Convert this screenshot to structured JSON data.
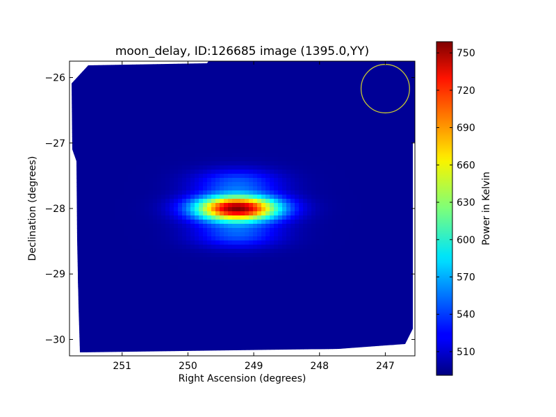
{
  "chart_data": {
    "type": "heatmap",
    "title": "moon_delay, ID:126685 image (1395.0,YY)",
    "xlabel": "Right Ascension (degrees)",
    "ylabel": "Declination (degrees)",
    "xlim": [
      251.8,
      246.55
    ],
    "ylim": [
      -30.25,
      -25.75
    ],
    "x_ticks": [
      251,
      250,
      249,
      248,
      247
    ],
    "x_tick_labels": [
      "251",
      "250",
      "249",
      "248",
      "247"
    ],
    "y_ticks": [
      -26,
      -27,
      -28,
      -29,
      -30
    ],
    "y_tick_labels": [
      "−26",
      "−27",
      "−28",
      "−29",
      "−30"
    ],
    "colorbar": {
      "label": "Power in Kelvin",
      "range": [
        491,
        759
      ],
      "ticks": [
        510,
        540,
        570,
        600,
        630,
        660,
        690,
        720,
        750
      ],
      "tick_labels": [
        "510",
        "540",
        "570",
        "600",
        "630",
        "660",
        "690",
        "720",
        "750"
      ],
      "colormap": "jet"
    },
    "background_level": 497,
    "source": {
      "ra": 249.25,
      "dec": -28.0,
      "peak": 759,
      "sigma_ra": 0.45,
      "sigma_dec": 0.26,
      "fringe_period_dec": 0.28
    },
    "circle_marker": {
      "ra": 247.0,
      "dec": -26.17,
      "radius_deg": 0.37,
      "color": "#c8c832"
    },
    "grid": false
  }
}
